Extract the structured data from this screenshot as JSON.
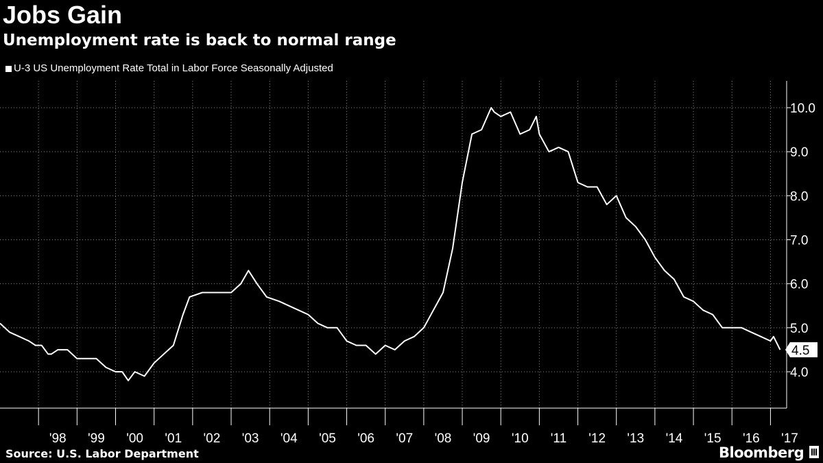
{
  "header": {
    "title": "Jobs Gain",
    "subtitle": "Unemployment rate is back to normal range"
  },
  "footer": {
    "source": "Source: U.S. Labor Department",
    "brand": "Bloomberg"
  },
  "chart_data": {
    "type": "line",
    "title": "Jobs Gain",
    "subtitle": "Unemployment rate is back to normal range",
    "xlabel": "",
    "ylabel": "",
    "ylim": [
      3.0,
      10.6
    ],
    "xlim": [
      1997.0,
      2017.42
    ],
    "grid": true,
    "legend_position": "top-left",
    "y_ticks": [
      "4.0",
      "5.0",
      "6.0",
      "7.0",
      "8.0",
      "9.0",
      "10.0"
    ],
    "x_tick_labels": [
      "'98",
      "'99",
      "'00",
      "'01",
      "'02",
      "'03",
      "'04",
      "'05",
      "'06",
      "'07",
      "'08",
      "'09",
      "'10",
      "'11",
      "'12",
      "'13",
      "'14",
      "'15",
      "'16",
      "'17"
    ],
    "last_value_label": "4.5",
    "colors": {
      "background": "#000000",
      "line": "#ffffff",
      "grid": "#888888"
    },
    "series": [
      {
        "name": "U-3 US Unemployment Rate Total in Labor Force Seasonally Adjusted",
        "x": [
          1997.0,
          1997.25,
          1997.5,
          1997.75,
          1997.92,
          1998.08,
          1998.25,
          1998.33,
          1998.5,
          1998.75,
          1999.0,
          1999.25,
          1999.5,
          1999.75,
          2000.0,
          2000.17,
          2000.33,
          2000.5,
          2000.75,
          2001.0,
          2001.25,
          2001.5,
          2001.75,
          2001.92,
          2002.25,
          2002.5,
          2002.75,
          2003.0,
          2003.25,
          2003.45,
          2003.67,
          2003.92,
          2004.25,
          2004.5,
          2004.75,
          2005.0,
          2005.25,
          2005.5,
          2005.75,
          2006.0,
          2006.25,
          2006.5,
          2006.75,
          2007.0,
          2007.25,
          2007.5,
          2007.75,
          2008.0,
          2008.25,
          2008.5,
          2008.75,
          2009.0,
          2009.25,
          2009.5,
          2009.75,
          2009.83,
          2010.0,
          2010.25,
          2010.5,
          2010.75,
          2010.92,
          2011.0,
          2011.25,
          2011.5,
          2011.75,
          2012.0,
          2012.25,
          2012.5,
          2012.75,
          2013.0,
          2013.25,
          2013.5,
          2013.75,
          2014.0,
          2014.25,
          2014.5,
          2014.75,
          2015.0,
          2015.25,
          2015.5,
          2015.75,
          2016.0,
          2016.25,
          2016.5,
          2016.75,
          2017.0,
          2017.08,
          2017.25
        ],
        "y": [
          5.1,
          4.9,
          4.8,
          4.7,
          4.6,
          4.6,
          4.4,
          4.4,
          4.5,
          4.5,
          4.3,
          4.3,
          4.3,
          4.1,
          4.0,
          4.0,
          3.8,
          4.0,
          3.9,
          4.2,
          4.4,
          4.6,
          5.3,
          5.7,
          5.8,
          5.8,
          5.8,
          5.8,
          6.0,
          6.3,
          6.0,
          5.7,
          5.6,
          5.5,
          5.4,
          5.3,
          5.1,
          5.0,
          5.0,
          4.7,
          4.6,
          4.6,
          4.4,
          4.6,
          4.5,
          4.7,
          4.8,
          5.0,
          5.4,
          5.8,
          6.8,
          8.3,
          9.4,
          9.5,
          10.0,
          9.9,
          9.8,
          9.9,
          9.4,
          9.5,
          9.8,
          9.4,
          9.0,
          9.1,
          9.0,
          8.3,
          8.2,
          8.2,
          7.8,
          8.0,
          7.5,
          7.3,
          7.0,
          6.6,
          6.3,
          6.1,
          5.7,
          5.6,
          5.4,
          5.3,
          5.0,
          5.0,
          5.0,
          4.9,
          4.8,
          4.7,
          4.8,
          4.5
        ]
      }
    ]
  }
}
